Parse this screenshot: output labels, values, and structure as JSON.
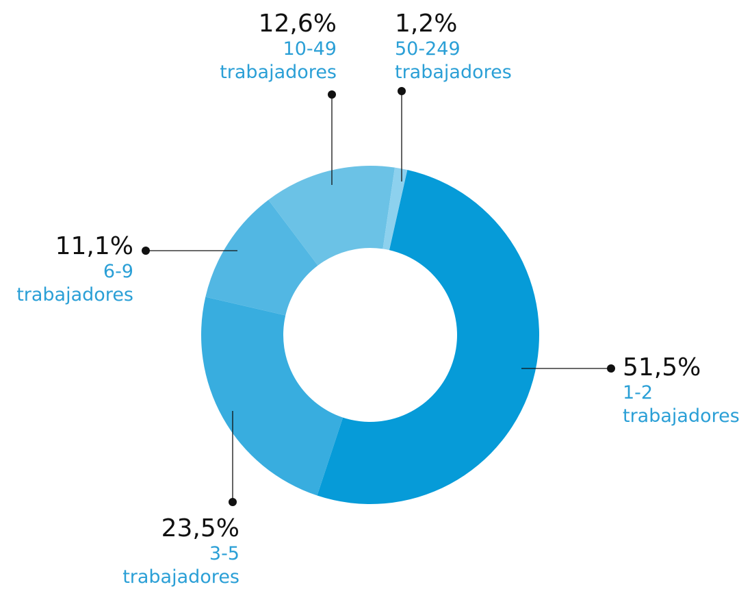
{
  "chart_data": {
    "type": "donut",
    "categories": [
      "1-2 trabajadores",
      "3-5 trabajadores",
      "6-9 trabajadores",
      "10-49 trabajadores",
      "50-249 trabajadores"
    ],
    "values": [
      51.5,
      23.5,
      11.1,
      12.6,
      1.2
    ],
    "value_labels": [
      "51,5%",
      "23,5%",
      "11,1%",
      "12,6%",
      "1,2%"
    ],
    "colors": [
      "#069bd8",
      "#38addf",
      "#52b7e3",
      "#6bc2e6",
      "#8dd1ee"
    ]
  }
}
